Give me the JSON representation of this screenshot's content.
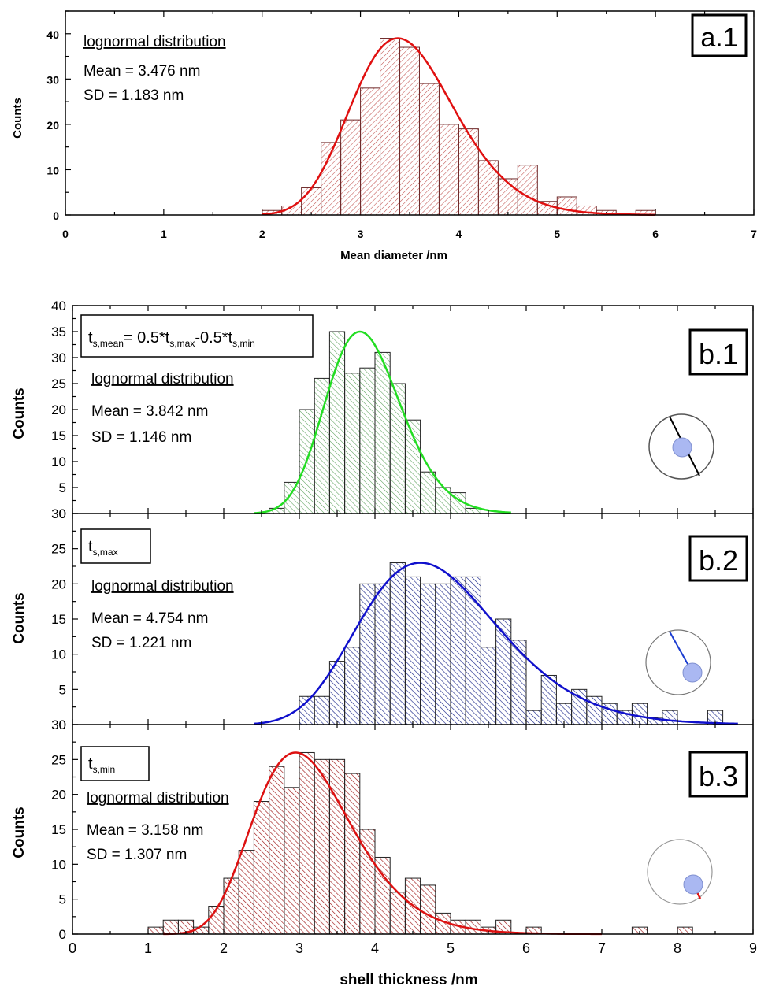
{
  "colors": {
    "a1_bar": "#c0504d",
    "a1_fit": "#e01010",
    "b1_bar": "#5aa05a",
    "b1_fit": "#22dd22",
    "b2_bar": "#1e2a8c",
    "b2_fit": "#1010cc",
    "b3_bar": "#a01818",
    "b3_fit": "#dd1111",
    "marker_fill": "#aab8f2"
  },
  "x_axis_b": {
    "label": "shell thickness /nm",
    "ticks": [
      "0",
      "1",
      "2",
      "3",
      "4",
      "5",
      "6",
      "7",
      "8",
      "9"
    ]
  },
  "chart_data": [
    {
      "id": "a1",
      "type": "bar",
      "panel_label": "a.1",
      "xlabel": "Mean diameter /nm",
      "ylabel": "Counts",
      "xlim": [
        0,
        7
      ],
      "ylim": [
        0,
        45
      ],
      "xticks": [
        "0",
        "1",
        "2",
        "3",
        "4",
        "5",
        "6",
        "7"
      ],
      "yticks": [
        "0",
        "10",
        "20",
        "30",
        "40"
      ],
      "bin_width": 0.2,
      "bin_starts": [
        2.0,
        2.2,
        2.4,
        2.6,
        2.8,
        3.0,
        3.2,
        3.4,
        3.6,
        3.8,
        4.0,
        4.2,
        4.4,
        4.6,
        4.8,
        5.0,
        5.2,
        5.4,
        5.6,
        5.8
      ],
      "values": [
        1,
        2,
        6,
        16,
        21,
        28,
        39,
        37,
        29,
        20,
        19,
        12,
        8,
        11,
        3,
        4,
        2,
        1,
        0,
        1
      ],
      "fit": {
        "type": "lognormal",
        "peak_x": 3.38,
        "peak_y": 39
      },
      "annotations": {
        "distribution": "lognormal distribution",
        "mean": "Mean = 3.476 nm",
        "sd": "SD = 1.183 nm"
      }
    },
    {
      "id": "b1",
      "type": "bar",
      "panel_label": "b.1",
      "ylabel": "Counts",
      "xlim": [
        0,
        9
      ],
      "ylim": [
        0,
        40
      ],
      "yticks": [
        "0",
        "5",
        "10",
        "15",
        "20",
        "25",
        "30",
        "35",
        "40"
      ],
      "bin_width": 0.2,
      "bin_starts": [
        2.6,
        2.8,
        3.0,
        3.2,
        3.4,
        3.6,
        3.8,
        4.0,
        4.2,
        4.4,
        4.6,
        4.8,
        5.0,
        5.2
      ],
      "values": [
        1,
        6,
        20,
        26,
        35,
        27,
        28,
        31,
        25,
        18,
        8,
        5,
        4,
        1
      ],
      "fit": {
        "type": "lognormal",
        "peak_x": 3.8,
        "peak_y": 35
      },
      "annotations": {
        "formula_main": "t",
        "formula_sub1": "s,mean",
        "formula_mid1": "= 0.5*t",
        "formula_sub2": "s,max",
        "formula_mid2": "-0.5*t",
        "formula_sub3": "s,min",
        "distribution": "lognormal distribution",
        "mean": "Mean = 3.842 nm",
        "sd": "SD = 1.146 nm"
      }
    },
    {
      "id": "b2",
      "type": "bar",
      "panel_label": "b.2",
      "ylabel": "Counts",
      "xlim": [
        0,
        9
      ],
      "ylim": [
        0,
        30
      ],
      "yticks": [
        "0",
        "5",
        "10",
        "15",
        "20",
        "25",
        "30"
      ],
      "bin_width": 0.2,
      "bin_starts": [
        3.0,
        3.2,
        3.4,
        3.6,
        3.8,
        4.0,
        4.2,
        4.4,
        4.6,
        4.8,
        5.0,
        5.2,
        5.4,
        5.6,
        5.8,
        6.0,
        6.2,
        6.4,
        6.6,
        6.8,
        7.0,
        7.2,
        7.4,
        7.6,
        7.8,
        8.0,
        8.2,
        8.4
      ],
      "values": [
        4,
        4,
        9,
        11,
        20,
        20,
        23,
        21,
        20,
        20,
        21,
        21,
        11,
        15,
        12,
        2,
        7,
        3,
        5,
        4,
        3,
        2,
        3,
        1,
        2,
        0,
        0,
        2
      ],
      "fit": {
        "type": "lognormal",
        "peak_x": 4.6,
        "peak_y": 23
      },
      "annotations": {
        "formula_main": "t",
        "formula_sub1": "s,max",
        "distribution": "lognormal distribution",
        "mean": "Mean = 4.754 nm",
        "sd": "SD =  1.221 nm"
      }
    },
    {
      "id": "b3",
      "type": "bar",
      "panel_label": "b.3",
      "ylabel": "Counts",
      "xlabel": "shell thickness /nm",
      "xlim": [
        0,
        9
      ],
      "ylim": [
        0,
        30
      ],
      "yticks": [
        "0",
        "5",
        "10",
        "15",
        "20",
        "25",
        "30"
      ],
      "bin_width": 0.2,
      "bin_starts": [
        1.0,
        1.2,
        1.4,
        1.6,
        1.8,
        2.0,
        2.2,
        2.4,
        2.6,
        2.8,
        3.0,
        3.2,
        3.4,
        3.6,
        3.8,
        4.0,
        4.2,
        4.4,
        4.6,
        4.8,
        5.0,
        5.2,
        5.4,
        5.6,
        5.8,
        6.0,
        6.2,
        6.4,
        6.6,
        6.8,
        7.0,
        7.2,
        7.4,
        7.6,
        7.8,
        8.0
      ],
      "values": [
        1,
        2,
        2,
        1,
        4,
        8,
        12,
        19,
        24,
        21,
        26,
        25,
        25,
        23,
        15,
        11,
        6,
        8,
        7,
        3,
        2,
        2,
        1,
        2,
        0,
        1,
        0,
        0,
        0,
        0,
        0,
        0,
        1,
        0,
        0,
        1
      ],
      "fit": {
        "type": "lognormal",
        "peak_x": 2.95,
        "peak_y": 26
      },
      "annotations": {
        "formula_main": "t",
        "formula_sub1": "s,min",
        "distribution": "lognormal distribution",
        "mean": "Mean = 3.158 nm",
        "sd": "SD = 1.307 nm"
      }
    }
  ]
}
